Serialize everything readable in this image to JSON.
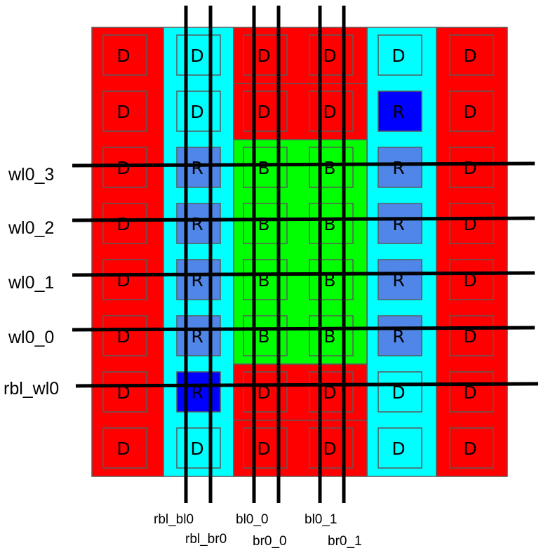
{
  "colors": {
    "dummy_red": "#ff0000",
    "cyan": "#00ffff",
    "bitcell_green": "#00ff00",
    "replica_light_blue": "#4f86e8",
    "replica_blue": "#0000ff",
    "border": "#5a5a5a",
    "wire": "#000000"
  },
  "columns": [
    {
      "bg": "dummy_red",
      "cells": [
        [
          "D",
          "dummy_red"
        ],
        [
          "D",
          "dummy_red"
        ],
        [
          "D",
          "dummy_red"
        ],
        [
          "D",
          "dummy_red"
        ],
        [
          "D",
          "dummy_red"
        ],
        [
          "D",
          "dummy_red"
        ],
        [
          "D",
          "dummy_red"
        ],
        [
          "D",
          "dummy_red"
        ]
      ]
    },
    {
      "bg": "cyan",
      "cells": [
        [
          "D",
          "cyan"
        ],
        [
          "D",
          "cyan"
        ],
        [
          "R",
          "replica_light_blue"
        ],
        [
          "R",
          "replica_light_blue"
        ],
        [
          "R",
          "replica_light_blue"
        ],
        [
          "R",
          "replica_light_blue"
        ],
        [
          "R",
          "replica_blue"
        ],
        [
          "D",
          "cyan"
        ]
      ]
    },
    {
      "bg": "mixed",
      "cells": [
        [
          "D",
          "dummy_red"
        ],
        [
          "D",
          "dummy_red"
        ],
        [
          "B",
          "bitcell_green"
        ],
        [
          "B",
          "bitcell_green"
        ],
        [
          "B",
          "bitcell_green"
        ],
        [
          "B",
          "bitcell_green"
        ],
        [
          "D",
          "dummy_red"
        ],
        [
          "D",
          "dummy_red"
        ]
      ]
    },
    {
      "bg": "mixed",
      "cells": [
        [
          "D",
          "dummy_red"
        ],
        [
          "D",
          "dummy_red"
        ],
        [
          "B",
          "bitcell_green"
        ],
        [
          "B",
          "bitcell_green"
        ],
        [
          "B",
          "bitcell_green"
        ],
        [
          "B",
          "bitcell_green"
        ],
        [
          "D",
          "dummy_red"
        ],
        [
          "D",
          "dummy_red"
        ]
      ]
    },
    {
      "bg": "cyan",
      "cells": [
        [
          "D",
          "cyan"
        ],
        [
          "R",
          "replica_blue"
        ],
        [
          "R",
          "replica_light_blue"
        ],
        [
          "R",
          "replica_light_blue"
        ],
        [
          "R",
          "replica_light_blue"
        ],
        [
          "R",
          "replica_light_blue"
        ],
        [
          "D",
          "cyan"
        ],
        [
          "D",
          "cyan"
        ]
      ]
    },
    {
      "bg": "dummy_red",
      "cells": [
        [
          "D",
          "dummy_red"
        ],
        [
          "D",
          "dummy_red"
        ],
        [
          "D",
          "dummy_red"
        ],
        [
          "D",
          "dummy_red"
        ],
        [
          "D",
          "dummy_red"
        ],
        [
          "D",
          "dummy_red"
        ],
        [
          "D",
          "dummy_red"
        ],
        [
          "D",
          "dummy_red"
        ]
      ]
    }
  ],
  "wordlines": [
    "wl0_3",
    "wl0_2",
    "wl0_1",
    "wl0_0",
    "rbl_wl0"
  ],
  "bitlines": [
    "rbl_bl0",
    "rbl_br0",
    "bl0_0",
    "br0_0",
    "bl0_1",
    "br0_1"
  ]
}
